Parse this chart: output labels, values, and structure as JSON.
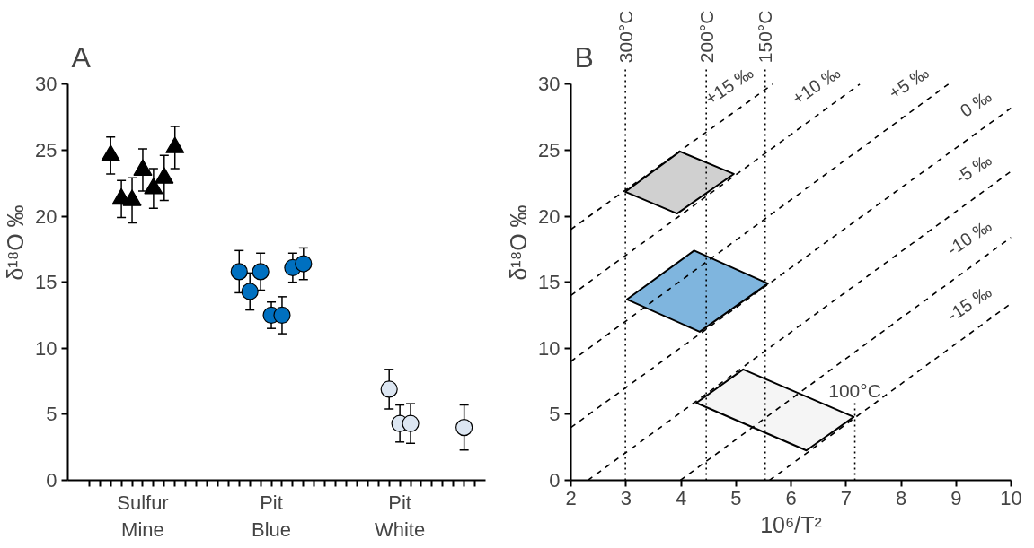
{
  "chart_data": [
    {
      "type": "scatter",
      "title": "A",
      "ylabel": "δ¹⁸O ‰",
      "ylim": [
        0,
        30
      ],
      "yticks": [
        0,
        5,
        10,
        15,
        20,
        25,
        30
      ],
      "categories": [
        null,
        null,
        null,
        null,
        null,
        "Sulfur\nMine",
        null,
        null,
        null,
        null,
        null,
        null,
        null,
        null,
        null,
        null,
        null,
        "Pit\nBlue",
        null,
        null,
        null,
        null,
        null,
        null,
        null,
        null,
        null,
        null,
        null,
        "Pit\nWhite",
        null,
        null,
        null,
        null,
        null,
        null,
        null
      ],
      "series": [
        {
          "color": "#000000",
          "marker": "triangle",
          "values": [
            null,
            null,
            24.6,
            21.3,
            21.2,
            23.5,
            22.1,
            22.9,
            25.2,
            null,
            null,
            null,
            null,
            null,
            null,
            null,
            null,
            null,
            null,
            null,
            null,
            null,
            null,
            null,
            null,
            null,
            null,
            null,
            null,
            null,
            null,
            null,
            null,
            null,
            null,
            null,
            null
          ],
          "errors": [
            null,
            null,
            1.4,
            1.4,
            1.7,
            1.6,
            1.5,
            1.7,
            1.6,
            null,
            null,
            null,
            null,
            null,
            null,
            null,
            null,
            null,
            null,
            null,
            null,
            null,
            null,
            null,
            null,
            null,
            null,
            null,
            null,
            null,
            null,
            null,
            null,
            null,
            null,
            null,
            null
          ]
        },
        {
          "color": "#0070c0",
          "marker": "circle",
          "values": [
            null,
            null,
            null,
            null,
            null,
            null,
            null,
            null,
            null,
            null,
            null,
            null,
            null,
            null,
            15.8,
            14.3,
            15.8,
            12.5,
            12.5,
            16.1,
            16.4,
            null,
            null,
            null,
            null,
            null,
            null,
            null,
            null,
            null,
            null,
            null,
            null,
            null,
            null,
            null,
            null
          ],
          "errors": [
            null,
            null,
            null,
            null,
            null,
            null,
            null,
            null,
            null,
            null,
            null,
            null,
            null,
            null,
            1.6,
            1.4,
            1.4,
            1.0,
            1.4,
            1.1,
            1.2,
            null,
            null,
            null,
            null,
            null,
            null,
            null,
            null,
            null,
            null,
            null,
            null,
            null,
            null,
            null,
            null
          ]
        },
        {
          "color": "#dce6f2",
          "marker": "circle",
          "values": [
            null,
            null,
            null,
            null,
            null,
            null,
            null,
            null,
            null,
            null,
            null,
            null,
            null,
            null,
            null,
            null,
            null,
            null,
            null,
            null,
            null,
            null,
            null,
            null,
            null,
            null,
            null,
            null,
            6.9,
            4.3,
            4.3,
            null,
            null,
            null,
            null,
            4.0,
            null
          ],
          "errors": [
            null,
            null,
            null,
            null,
            null,
            null,
            null,
            null,
            null,
            null,
            null,
            null,
            null,
            null,
            null,
            null,
            null,
            null,
            null,
            null,
            null,
            null,
            null,
            null,
            null,
            null,
            null,
            null,
            1.5,
            1.4,
            1.5,
            null,
            null,
            null,
            null,
            1.7,
            null
          ]
        }
      ]
    },
    {
      "type": "line",
      "title": "B",
      "xlabel": "10⁶/T²",
      "ylabel": "δ¹⁸O ‰",
      "xlim": [
        2,
        10
      ],
      "ylim": [
        0,
        30
      ],
      "xticks": [
        2,
        3,
        4,
        5,
        6,
        7,
        8,
        9,
        10
      ],
      "yticks": [
        0,
        5,
        10,
        15,
        20,
        25,
        30
      ],
      "line_style": "dashed",
      "series": [
        {
          "type": "area",
          "color": "#d0d0d0",
          "x": [
            2.99,
            3.98,
            4.96,
            3.93,
            2.99
          ],
          "values": [
            21.85,
            24.9,
            23.2,
            20.2,
            21.85
          ]
        },
        {
          "type": "area",
          "color": "#7fb5de",
          "x": [
            3.02,
            4.24,
            5.58,
            4.34,
            3.02
          ],
          "values": [
            13.7,
            17.4,
            14.9,
            11.25,
            13.7
          ]
        },
        {
          "type": "area",
          "color": "#f5f5f5",
          "x": [
            4.28,
            5.13,
            7.14,
            6.28,
            4.28
          ],
          "values": [
            5.86,
            8.4,
            4.8,
            2.26,
            5.86
          ]
        },
        {
          "color": "#000000",
          "name": "+15 ‰",
          "x": [
            2,
            5.67
          ],
          "values": [
            19,
            30
          ]
        },
        {
          "color": "#000000",
          "name": "+10 ‰",
          "x": [
            2,
            7.25
          ],
          "values": [
            14,
            30
          ]
        },
        {
          "color": "#000000",
          "name": "+5 ‰",
          "x": [
            2,
            8.86
          ],
          "values": [
            9,
            30
          ]
        },
        {
          "color": "#000000",
          "name": "0 ‰",
          "x": [
            2,
            10
          ],
          "values": [
            4,
            28.2
          ]
        },
        {
          "color": "#000000",
          "name": "-5 ‰",
          "x": [
            2.31,
            10
          ],
          "values": [
            0,
            23.4
          ]
        },
        {
          "color": "#000000",
          "name": "-10 ‰",
          "x": [
            3.99,
            10
          ],
          "values": [
            0,
            18.4
          ]
        },
        {
          "color": "#000000",
          "name": "-15 ‰",
          "x": [
            5.61,
            10
          ],
          "values": [
            0,
            13.4
          ]
        },
        {
          "color": "#000000",
          "name": "100°C",
          "line_style": "dotted",
          "x": [
            7.16,
            7.16
          ],
          "values": [
            0,
            5.9
          ]
        }
      ],
      "ref_lines": [
        {
          "axis": "x",
          "value": 2.99,
          "label": "300°C",
          "line_style": "dotted"
        },
        {
          "axis": "x",
          "value": 4.46,
          "label": "200°C",
          "line_style": "dotted"
        },
        {
          "axis": "x",
          "value": 5.53,
          "label": "150°C",
          "line_style": "dotted"
        }
      ]
    }
  ]
}
